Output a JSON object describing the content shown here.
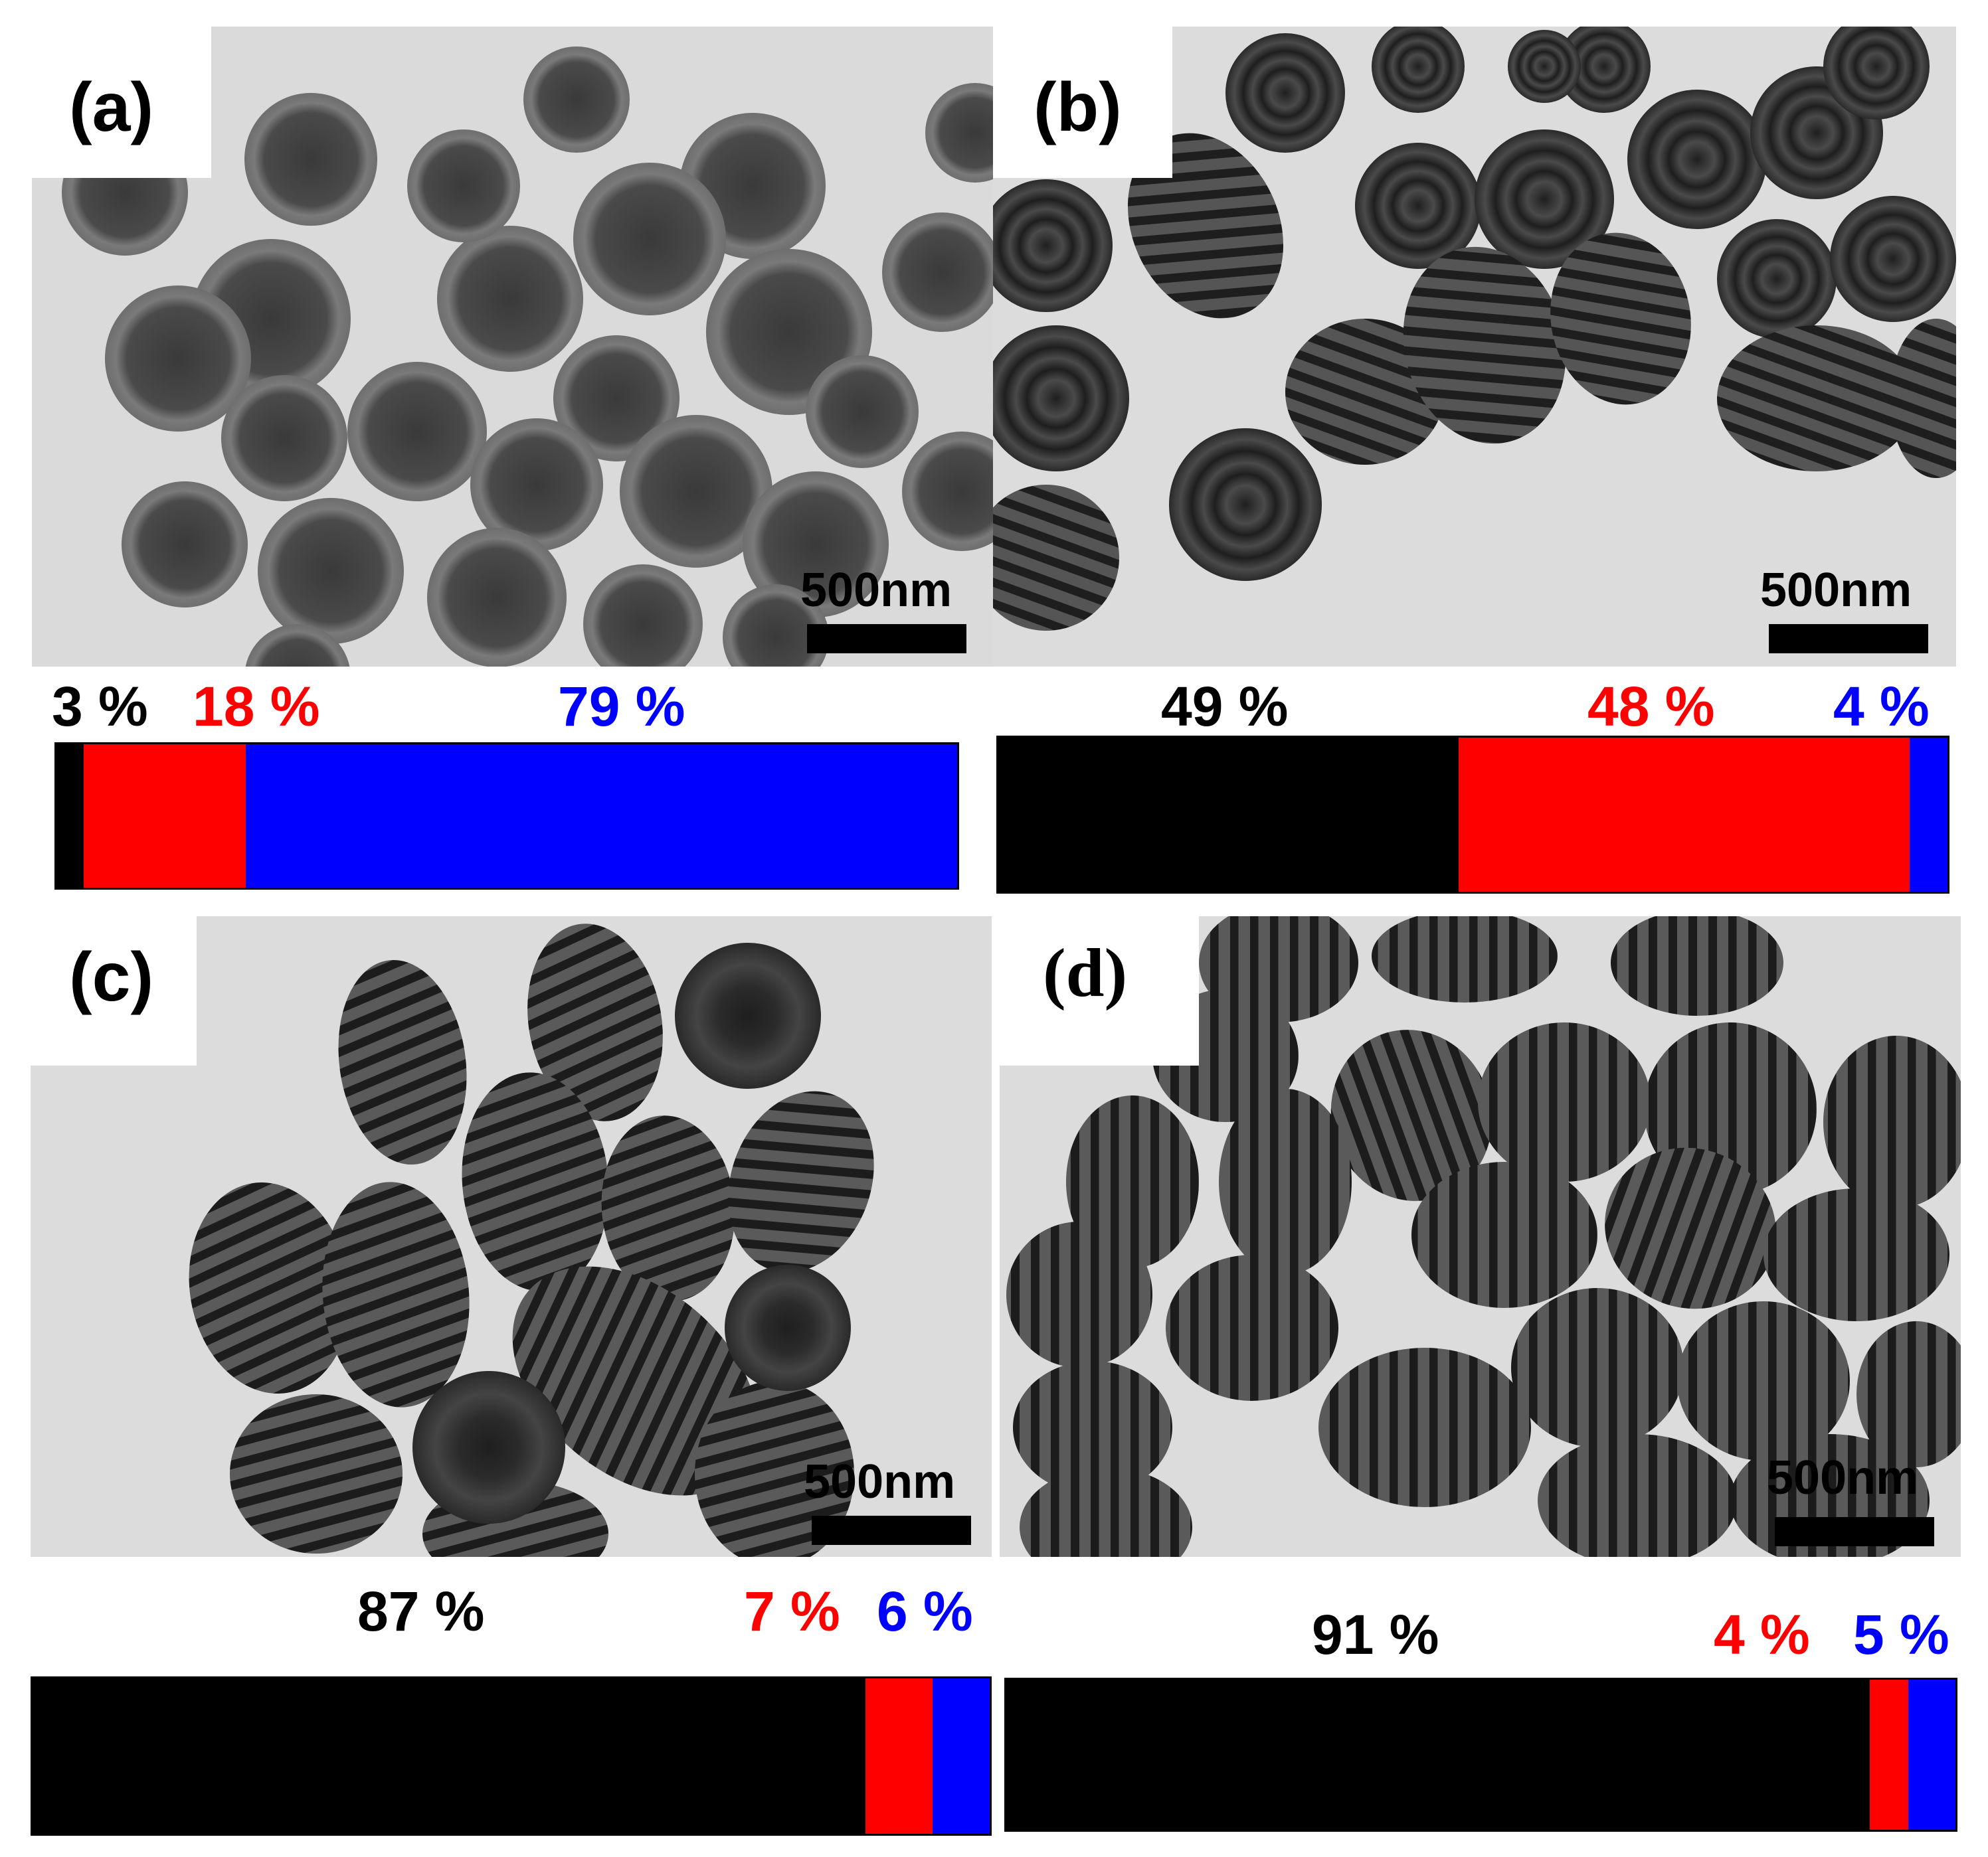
{
  "colors": {
    "black": "#000000",
    "red": "#ff0000",
    "blue": "#0000ff"
  },
  "panels": [
    {
      "label": "(a)",
      "scale_bar": "500nm",
      "population": [
        {
          "text": "3 %",
          "value": 3,
          "color": "#000000"
        },
        {
          "text": "18 %",
          "value": 18,
          "color": "#ff0000"
        },
        {
          "text": "79 %",
          "value": 79,
          "color": "#0000ff"
        }
      ]
    },
    {
      "label": "(b)",
      "scale_bar": "500nm",
      "population": [
        {
          "text": "49 %",
          "value": 49,
          "color": "#000000"
        },
        {
          "text": "48 %",
          "value": 48,
          "color": "#ff0000"
        },
        {
          "text": "4 %",
          "value": 4,
          "color": "#0000ff"
        }
      ]
    },
    {
      "label": "(c)",
      "scale_bar": "500nm",
      "population": [
        {
          "text": "87 %",
          "value": 87,
          "color": "#000000"
        },
        {
          "text": "7 %",
          "value": 7,
          "color": "#ff0000"
        },
        {
          "text": "6 %",
          "value": 6,
          "color": "#0000ff"
        }
      ]
    },
    {
      "label": "(d)",
      "scale_bar": "500nm",
      "population": [
        {
          "text": "91 %",
          "value": 91,
          "color": "#000000"
        },
        {
          "text": "4 %",
          "value": 4,
          "color": "#ff0000"
        },
        {
          "text": "5 %",
          "value": 5,
          "color": "#0000ff"
        }
      ]
    }
  ]
}
